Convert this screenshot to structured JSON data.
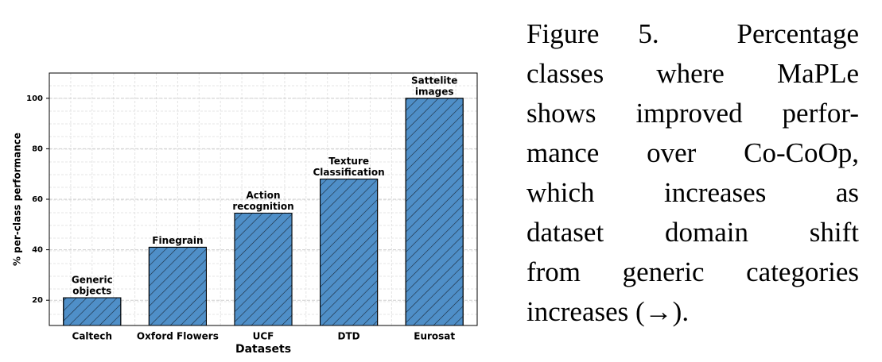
{
  "chart_data": {
    "type": "bar",
    "categories": [
      "Caltech",
      "Oxford Flowers",
      "UCF",
      "DTD",
      "Eurosat"
    ],
    "values": [
      21,
      41,
      54.5,
      68,
      100
    ],
    "bar_labels": [
      [
        "Generic",
        "objects"
      ],
      [
        "Finegrain"
      ],
      [
        "Action",
        "recognition"
      ],
      [
        "Texture",
        "Classification"
      ],
      [
        "Sattelite",
        "images"
      ]
    ],
    "color": "#4f8fc8",
    "hatch": true,
    "xlabel": "Datasets",
    "ylabel": "% per-class performance",
    "ylim": [
      10,
      110
    ],
    "yticks": [
      20,
      40,
      60,
      80,
      100
    ],
    "grid": true
  },
  "caption": {
    "lines": [
      "Figure 5.  Percentage",
      "classes where MaPLe",
      "shows improved perfor-",
      "mance over Co-CoOp,",
      "which increases as",
      "dataset domain shift",
      "from generic categories",
      "increases (→)."
    ]
  }
}
